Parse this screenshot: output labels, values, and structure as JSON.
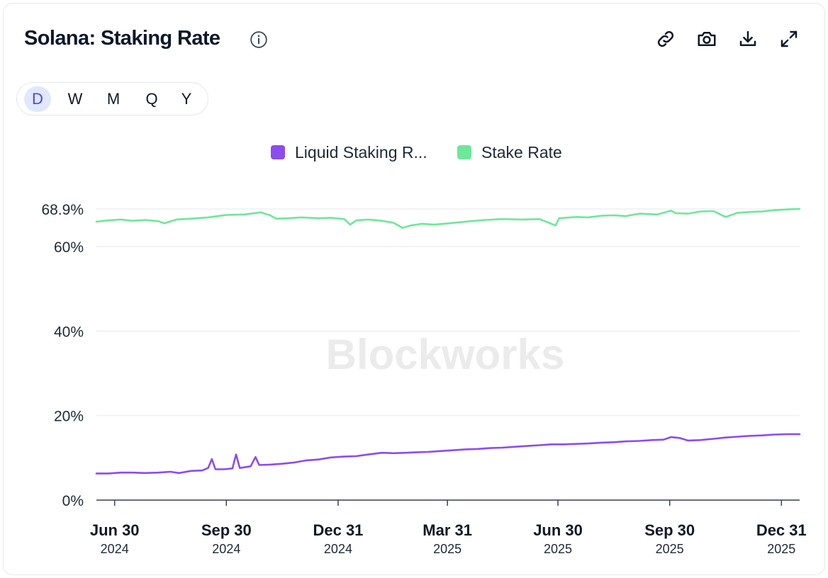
{
  "header": {
    "title": "Solana: Staking Rate",
    "info_icon": "info-circle-icon",
    "toolbar": [
      {
        "icon": "link-icon"
      },
      {
        "icon": "camera-icon"
      },
      {
        "icon": "download-icon"
      },
      {
        "icon": "expand-icon"
      }
    ]
  },
  "periods": {
    "items": [
      "D",
      "W",
      "M",
      "Q",
      "Y"
    ],
    "selected": "D"
  },
  "watermark": "Blockworks",
  "colors": {
    "liquid": "#8b4cf0",
    "stake": "#6ee79a",
    "active_bg": "#e0e7ff",
    "active_text": "#4f46e5",
    "grid": "#e5e7eb"
  },
  "chart_data": {
    "type": "line",
    "title": "Solana: Staking Rate",
    "xlabel": "",
    "ylabel": "",
    "ylim": [
      0,
      68.9
    ],
    "y_ticks": [
      {
        "value": 0,
        "label": "0%"
      },
      {
        "value": 20,
        "label": "20%"
      },
      {
        "value": 40,
        "label": "40%"
      },
      {
        "value": 60,
        "label": "60%"
      },
      {
        "value": 68.9,
        "label": "68.9%"
      }
    ],
    "x_ticks": [
      {
        "date": "2024-06-30",
        "label": "Jun 30",
        "year": "2024"
      },
      {
        "date": "2024-09-30",
        "label": "Sep 30",
        "year": "2024"
      },
      {
        "date": "2024-12-31",
        "label": "Dec 31",
        "year": "2024"
      },
      {
        "date": "2025-03-31",
        "label": "Mar 31",
        "year": "2025"
      },
      {
        "date": "2025-06-30",
        "label": "Jun 30",
        "year": "2025"
      },
      {
        "date": "2025-09-30",
        "label": "Sep 30",
        "year": "2025"
      },
      {
        "date": "2025-12-31",
        "label": "Dec 31",
        "year": "2025"
      }
    ],
    "xlim": [
      "2024-06-15",
      "2026-01-15"
    ],
    "grid": true,
    "legend_position": "top-center",
    "series": [
      {
        "name": "Liquid Staking R...",
        "color": "#8b4cf0",
        "points": [
          [
            "2024-06-15",
            6.3
          ],
          [
            "2024-06-25",
            6.3
          ],
          [
            "2024-07-05",
            6.5
          ],
          [
            "2024-07-15",
            6.5
          ],
          [
            "2024-07-25",
            6.4
          ],
          [
            "2024-08-05",
            6.5
          ],
          [
            "2024-08-15",
            6.7
          ],
          [
            "2024-08-22",
            6.4
          ],
          [
            "2024-09-01",
            6.9
          ],
          [
            "2024-09-10",
            7.0
          ],
          [
            "2024-09-15",
            7.6
          ],
          [
            "2024-09-18",
            9.7
          ],
          [
            "2024-09-21",
            7.3
          ],
          [
            "2024-09-28",
            7.3
          ],
          [
            "2024-10-05",
            7.5
          ],
          [
            "2024-10-08",
            10.8
          ],
          [
            "2024-10-11",
            7.6
          ],
          [
            "2024-10-20",
            8.0
          ],
          [
            "2024-10-24",
            10.2
          ],
          [
            "2024-10-27",
            8.3
          ],
          [
            "2024-11-05",
            8.4
          ],
          [
            "2024-11-15",
            8.6
          ],
          [
            "2024-11-25",
            8.9
          ],
          [
            "2024-12-05",
            9.4
          ],
          [
            "2024-12-15",
            9.6
          ],
          [
            "2024-12-25",
            10.1
          ],
          [
            "2025-01-05",
            10.3
          ],
          [
            "2025-01-15",
            10.4
          ],
          [
            "2025-01-25",
            10.8
          ],
          [
            "2025-02-05",
            11.2
          ],
          [
            "2025-02-15",
            11.1
          ],
          [
            "2025-02-25",
            11.2
          ],
          [
            "2025-03-05",
            11.3
          ],
          [
            "2025-03-15",
            11.4
          ],
          [
            "2025-03-25",
            11.6
          ],
          [
            "2025-04-05",
            11.8
          ],
          [
            "2025-04-15",
            12.0
          ],
          [
            "2025-04-25",
            12.1
          ],
          [
            "2025-05-05",
            12.3
          ],
          [
            "2025-05-15",
            12.4
          ],
          [
            "2025-05-25",
            12.6
          ],
          [
            "2025-06-05",
            12.8
          ],
          [
            "2025-06-15",
            13.0
          ],
          [
            "2025-06-25",
            13.2
          ],
          [
            "2025-07-05",
            13.2
          ],
          [
            "2025-07-15",
            13.3
          ],
          [
            "2025-07-25",
            13.4
          ],
          [
            "2025-08-05",
            13.6
          ],
          [
            "2025-08-15",
            13.7
          ],
          [
            "2025-08-25",
            13.9
          ],
          [
            "2025-09-05",
            14.0
          ],
          [
            "2025-09-15",
            14.2
          ],
          [
            "2025-09-25",
            14.3
          ],
          [
            "2025-10-01",
            14.9
          ],
          [
            "2025-10-08",
            14.7
          ],
          [
            "2025-10-15",
            14.1
          ],
          [
            "2025-10-25",
            14.2
          ],
          [
            "2025-11-05",
            14.5
          ],
          [
            "2025-11-15",
            14.8
          ],
          [
            "2025-11-25",
            15.0
          ],
          [
            "2025-12-05",
            15.2
          ],
          [
            "2025-12-15",
            15.3
          ],
          [
            "2025-12-25",
            15.5
          ],
          [
            "2026-01-05",
            15.6
          ],
          [
            "2026-01-15",
            15.6
          ]
        ]
      },
      {
        "name": "Stake Rate",
        "color": "#6ee79a",
        "points": [
          [
            "2024-06-15",
            65.9
          ],
          [
            "2024-06-25",
            66.2
          ],
          [
            "2024-07-05",
            66.4
          ],
          [
            "2024-07-15",
            66.1
          ],
          [
            "2024-07-25",
            66.3
          ],
          [
            "2024-08-05",
            66.0
          ],
          [
            "2024-08-10",
            65.5
          ],
          [
            "2024-08-20",
            66.4
          ],
          [
            "2024-09-01",
            66.6
          ],
          [
            "2024-09-15",
            66.9
          ],
          [
            "2024-09-30",
            67.5
          ],
          [
            "2024-10-15",
            67.6
          ],
          [
            "2024-10-28",
            68.1
          ],
          [
            "2024-11-05",
            67.4
          ],
          [
            "2024-11-10",
            66.6
          ],
          [
            "2024-11-20",
            66.7
          ],
          [
            "2024-12-01",
            66.9
          ],
          [
            "2024-12-15",
            66.7
          ],
          [
            "2024-12-25",
            66.8
          ],
          [
            "2025-01-05",
            66.5
          ],
          [
            "2025-01-10",
            65.2
          ],
          [
            "2025-01-15",
            66.2
          ],
          [
            "2025-01-25",
            66.4
          ],
          [
            "2025-02-05",
            66.1
          ],
          [
            "2025-02-15",
            65.6
          ],
          [
            "2025-02-22",
            64.4
          ],
          [
            "2025-03-01",
            65.0
          ],
          [
            "2025-03-10",
            65.4
          ],
          [
            "2025-03-20",
            65.2
          ],
          [
            "2025-04-01",
            65.5
          ],
          [
            "2025-04-15",
            65.9
          ],
          [
            "2025-05-01",
            66.3
          ],
          [
            "2025-05-15",
            66.5
          ],
          [
            "2025-06-01",
            66.4
          ],
          [
            "2025-06-15",
            66.5
          ],
          [
            "2025-06-28",
            65.0
          ],
          [
            "2025-07-01",
            66.7
          ],
          [
            "2025-07-15",
            67.0
          ],
          [
            "2025-07-25",
            66.9
          ],
          [
            "2025-08-05",
            67.3
          ],
          [
            "2025-08-15",
            67.4
          ],
          [
            "2025-08-25",
            67.2
          ],
          [
            "2025-09-05",
            67.8
          ],
          [
            "2025-09-20",
            67.6
          ],
          [
            "2025-10-01",
            68.5
          ],
          [
            "2025-10-05",
            67.9
          ],
          [
            "2025-10-15",
            67.8
          ],
          [
            "2025-10-25",
            68.3
          ],
          [
            "2025-11-05",
            68.4
          ],
          [
            "2025-11-15",
            67.0
          ],
          [
            "2025-11-25",
            68.0
          ],
          [
            "2025-12-05",
            68.2
          ],
          [
            "2025-12-15",
            68.3
          ],
          [
            "2025-12-25",
            68.6
          ],
          [
            "2026-01-05",
            68.8
          ],
          [
            "2026-01-15",
            68.9
          ]
        ]
      }
    ]
  }
}
